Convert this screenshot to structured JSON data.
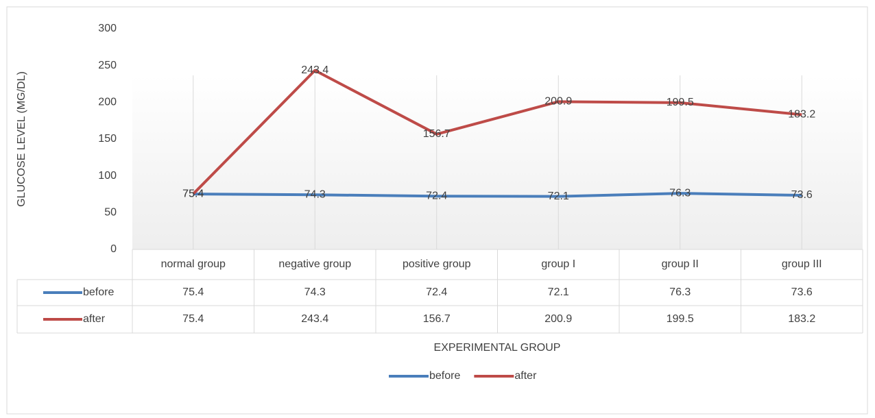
{
  "chart_data": {
    "type": "line",
    "y_axis_label": "GLUCOSE LEVEL (MG/DL)",
    "x_axis_label": "EXPERIMENTAL GROUP",
    "categories": [
      "normal group",
      "negative group",
      "positive group",
      "group I",
      "group II",
      "group III"
    ],
    "series": [
      {
        "name": "before",
        "color": "#4a7ebb",
        "values": [
          75.4,
          74.3,
          72.4,
          72.1,
          76.3,
          73.6
        ]
      },
      {
        "name": "after",
        "color": "#be4b48",
        "values": [
          75.4,
          243.4,
          156.7,
          200.9,
          199.5,
          183.2
        ]
      }
    ],
    "ylim": [
      0,
      300
    ],
    "yticks": [
      0,
      50,
      100,
      150,
      200,
      250,
      300
    ],
    "vertical_grid": true,
    "data_labels": true,
    "data_table": true,
    "legend": "bottom"
  }
}
